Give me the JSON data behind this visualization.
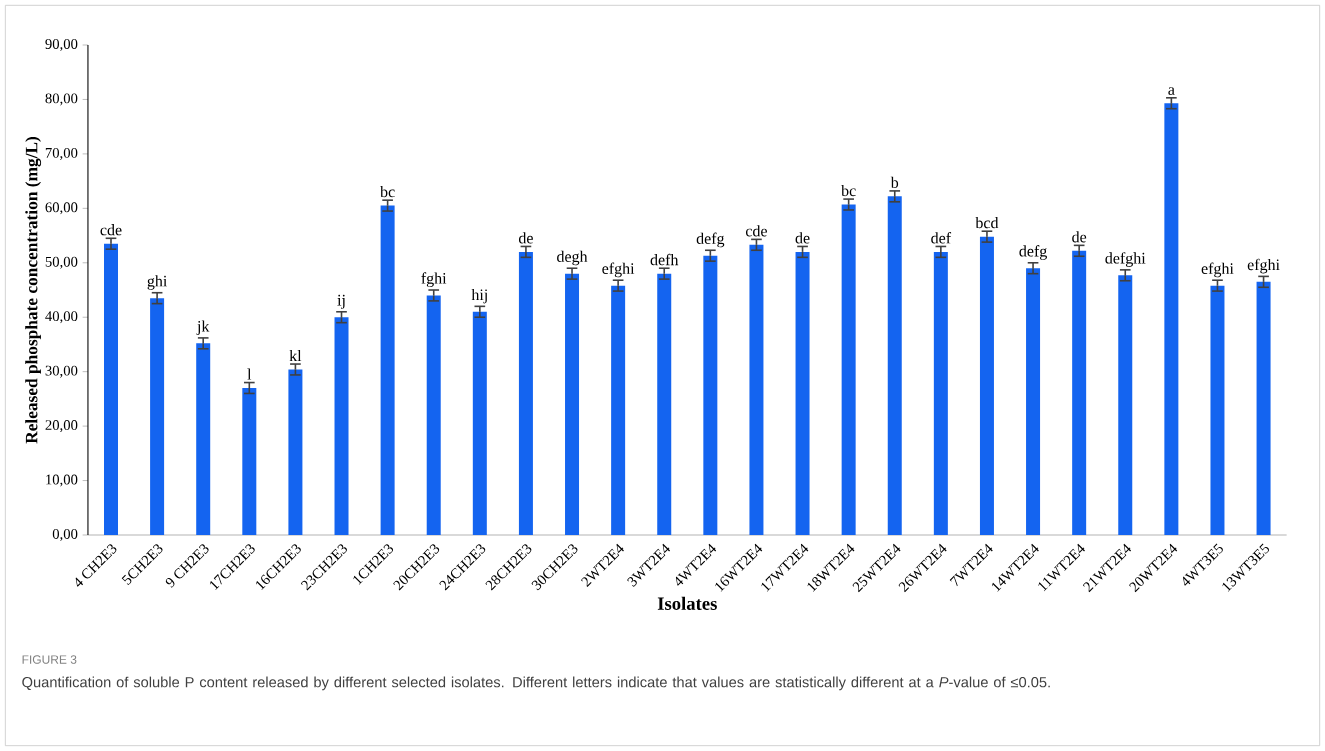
{
  "chart_data": {
    "type": "bar",
    "xlabel": "Isolates",
    "ylabel": "Released phosphate concentration (mg/L)",
    "categories": [
      "4 CH2E3",
      "5CH2E3",
      "9 CH2E3",
      "17CH2E3",
      "16CH2E3",
      "23CH2E3",
      "1CH2E3",
      "20CH2E3",
      "24CH2E3",
      "28CH2E3",
      "30CH2E3",
      "2WT2E4",
      "3WT2E4",
      "4WT2E4",
      "16WT2E4",
      "17WT2E4",
      "18WT2E4",
      "25WT2E4",
      "26WT2E4",
      "7WT2E4",
      "14WT2E4",
      "11WT2E4",
      "21WT2E4",
      "20WT2E4",
      "4WT3E5",
      "13WT3E5"
    ],
    "values": [
      53.5,
      43.5,
      35.2,
      27.0,
      30.4,
      40.0,
      60.5,
      44.0,
      41.0,
      52.0,
      48.0,
      45.8,
      48.0,
      51.3,
      53.3,
      52.0,
      60.7,
      62.2,
      52.0,
      54.8,
      49.0,
      52.2,
      47.7,
      79.3,
      45.8,
      46.5
    ],
    "errors": [
      1,
      1,
      1,
      1,
      1,
      1,
      1,
      1,
      1,
      1,
      1,
      1,
      1,
      1,
      1,
      1,
      1,
      1,
      1,
      1,
      1,
      1,
      1,
      1,
      1,
      1
    ],
    "color": "#1464f0",
    "ylim": [
      0,
      90
    ],
    "yticks": [
      {
        "value": 0,
        "label": "0,00"
      },
      {
        "value": 10,
        "label": "10,00"
      },
      {
        "value": 20,
        "label": "20,00"
      },
      {
        "value": 30,
        "label": "30,00"
      },
      {
        "value": 40,
        "label": "40,00"
      },
      {
        "value": 50,
        "label": "50,00"
      },
      {
        "value": 60,
        "label": "60,00"
      },
      {
        "value": 70,
        "label": "70,00"
      },
      {
        "value": 80,
        "label": "80,00"
      },
      {
        "value": 90,
        "label": "90,00"
      }
    ],
    "grid": false,
    "annotations": [
      "FIGURE 3",
      "Quantification of soluble P content released by different selected isolates. Different letters indicate that values are statistically different at a *P*-value of ≤0.05.",
      {
        "text": "cde",
        "x": "4 CH2E3",
        "y": 54.5
      },
      {
        "text": "ghi",
        "x": "5CH2E3",
        "y": 44.5
      },
      {
        "text": "jk",
        "x": "9 CH2E3",
        "y": 36.2
      },
      {
        "text": "l",
        "x": "17CH2E3",
        "y": 28.0
      },
      {
        "text": "kl",
        "x": "16CH2E3",
        "y": 31.4
      },
      {
        "text": "ij",
        "x": "23CH2E3",
        "y": 41.0
      },
      {
        "text": "bc",
        "x": "1CH2E3",
        "y": 61.5
      },
      {
        "text": "fghi",
        "x": "20CH2E3",
        "y": 45.0
      },
      {
        "text": "hij",
        "x": "24CH2E3",
        "y": 42.0
      },
      {
        "text": "de",
        "x": "28CH2E3",
        "y": 53.0
      },
      {
        "text": "degh",
        "x": "30CH2E3",
        "y": 49.0
      },
      {
        "text": "efghi",
        "x": "2WT2E4",
        "y": 46.8
      },
      {
        "text": "defh",
        "x": "3WT2E4",
        "y": 49.0
      },
      {
        "text": "defg",
        "x": "4WT2E4",
        "y": 52.3
      },
      {
        "text": "cde",
        "x": "16WT2E4",
        "y": 54.3
      },
      {
        "text": "de",
        "x": "17WT2E4",
        "y": 53.0
      },
      {
        "text": "bc",
        "x": "18WT2E4",
        "y": 61.7
      },
      {
        "text": "b",
        "x": "25WT2E4",
        "y": 63.2
      },
      {
        "text": "def",
        "x": "26WT2E4",
        "y": 53.0
      },
      {
        "text": "bcd",
        "x": "7WT2E4",
        "y": 55.8
      },
      {
        "text": "defg",
        "x": "14WT2E4",
        "y": 50.0
      },
      {
        "text": "de",
        "x": "11WT2E4",
        "y": 53.2
      },
      {
        "text": "defghi",
        "x": "21WT2E4",
        "y": 48.7
      },
      {
        "text": "a",
        "x": "20WT2E4",
        "y": 80.3
      },
      {
        "text": "efghi",
        "x": "4WT3E5",
        "y": 46.8
      },
      {
        "text": "efghi",
        "x": "13WT3E5",
        "y": 47.5
      }
    ]
  }
}
